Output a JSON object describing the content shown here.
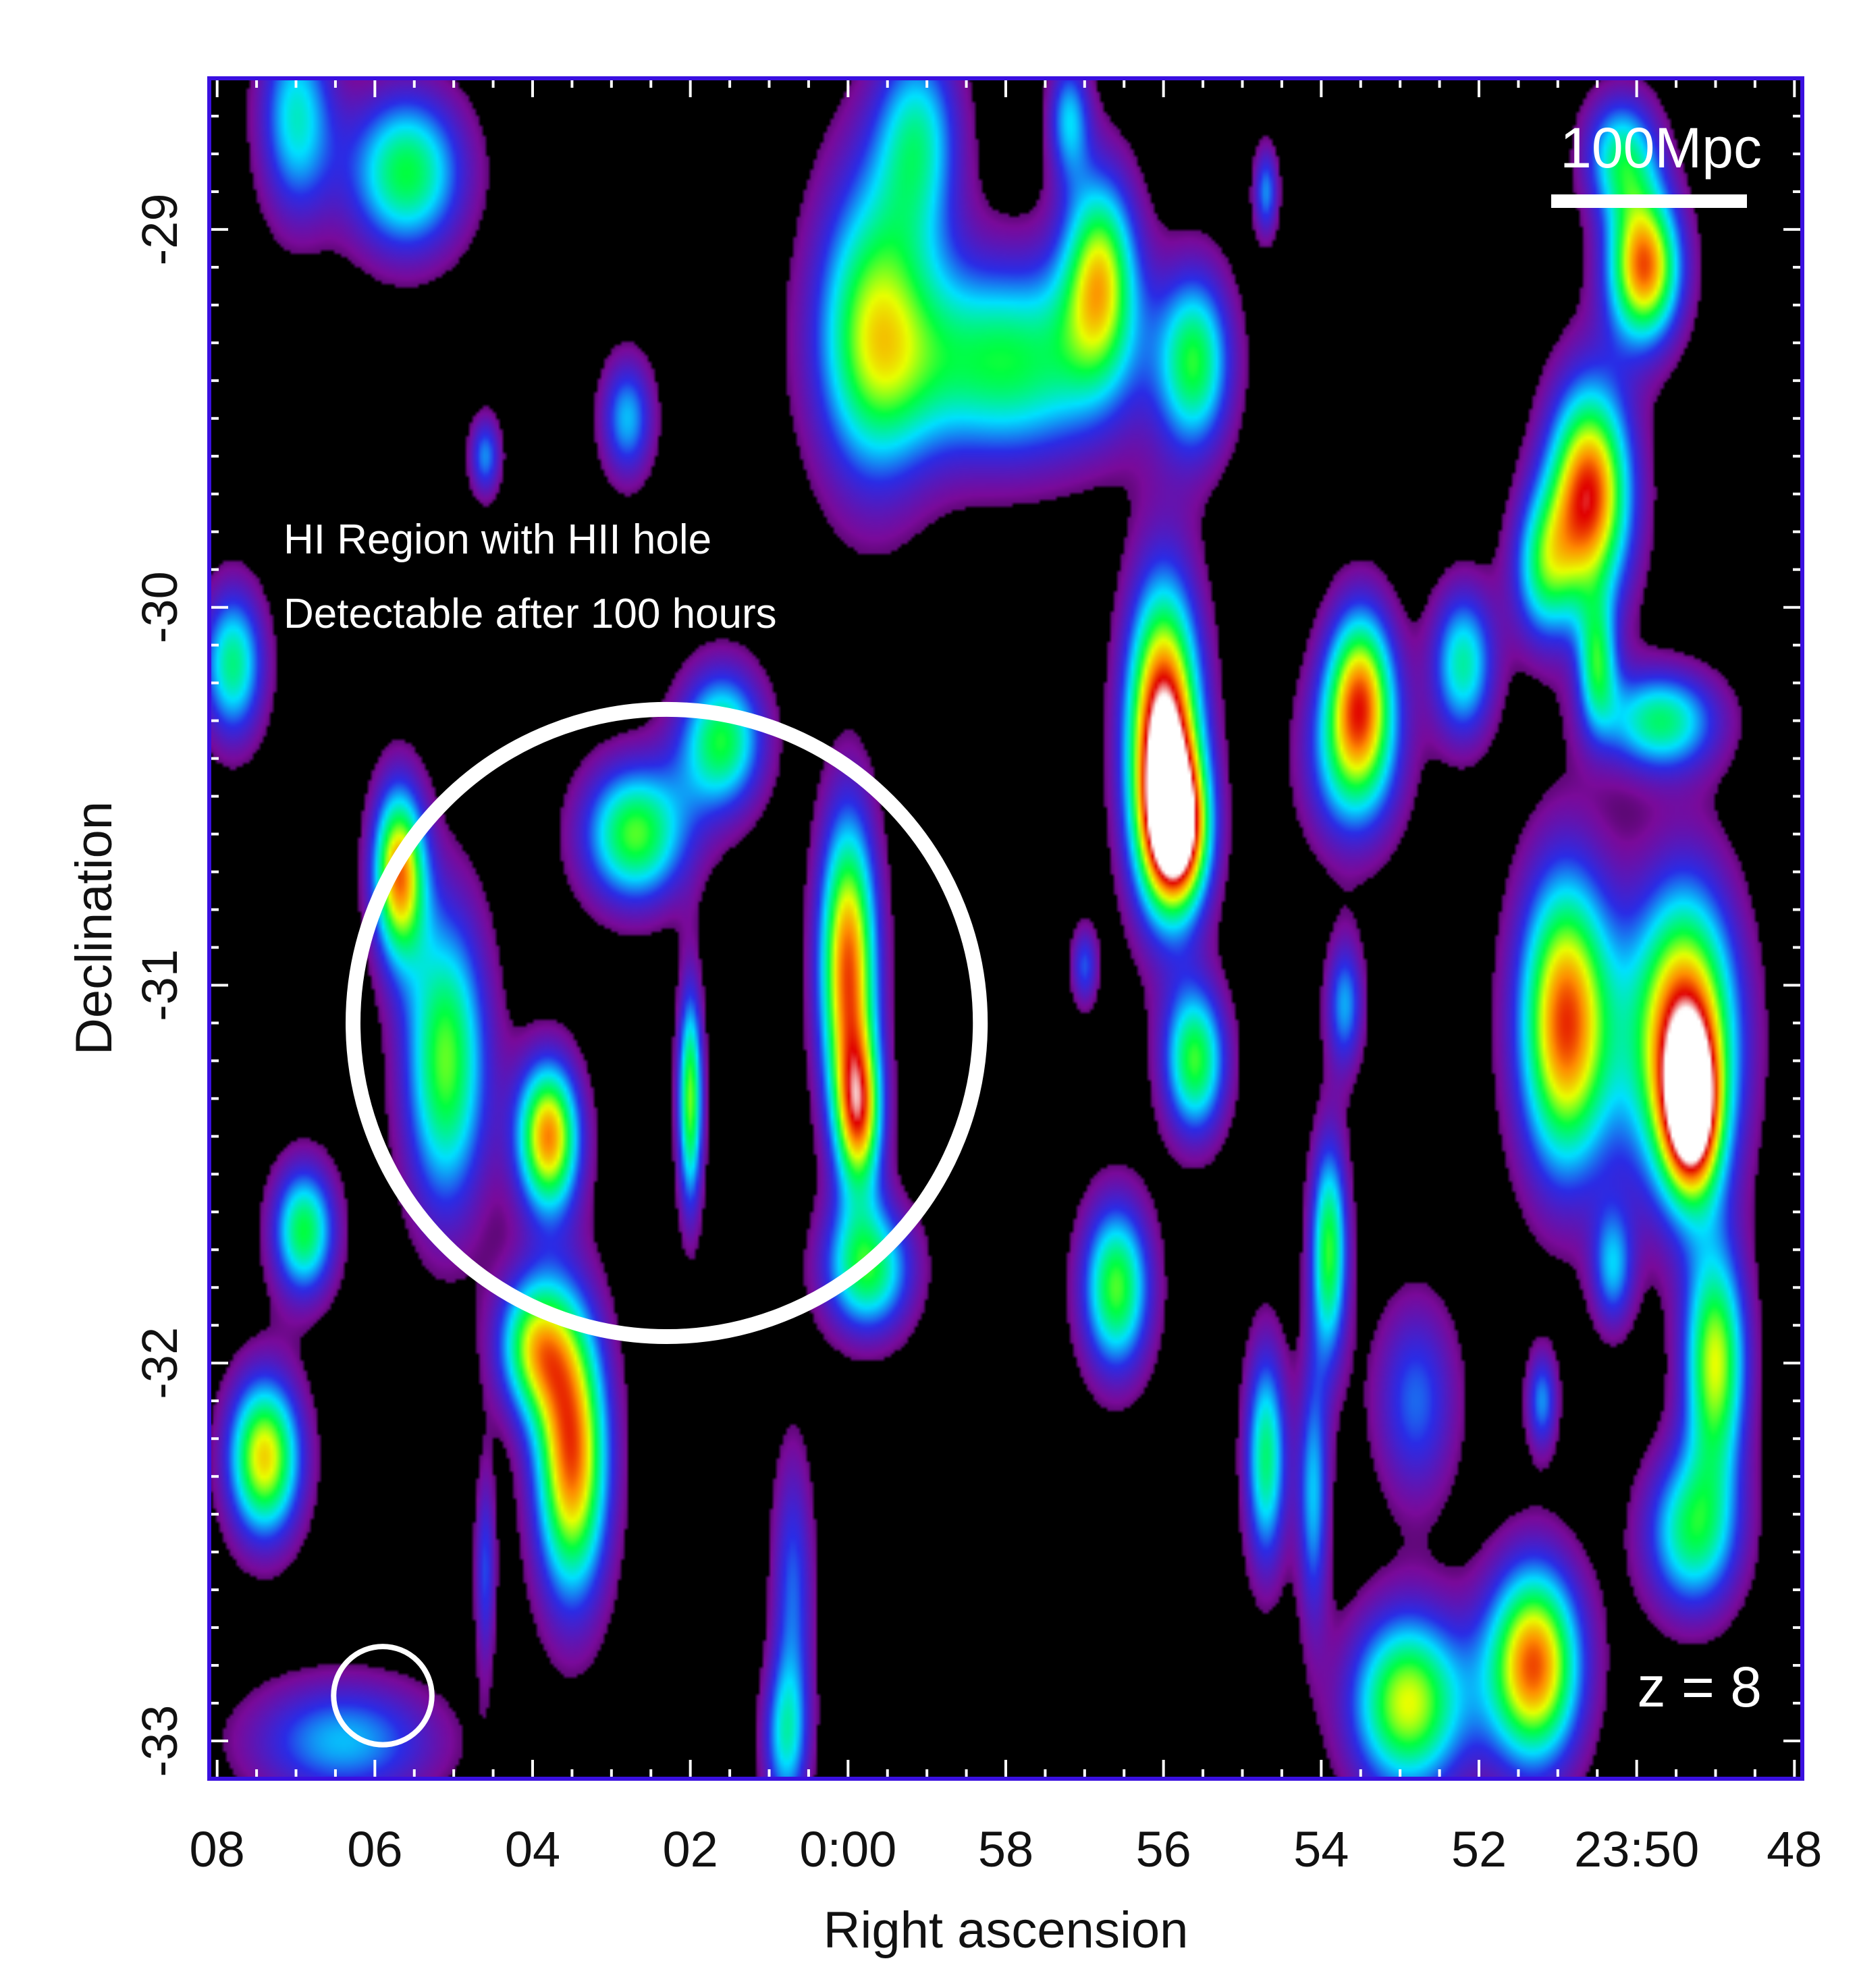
{
  "chart_data": {
    "type": "heatmap",
    "title": "",
    "xlabel": "Right ascension",
    "ylabel": "Declination",
    "x_ticks": [
      {
        "value": 8,
        "label": "08"
      },
      {
        "value": 6,
        "label": "06"
      },
      {
        "value": 4,
        "label": "04"
      },
      {
        "value": 2,
        "label": "02"
      },
      {
        "value": 0,
        "label": "0:00"
      },
      {
        "value": -2,
        "label": "58"
      },
      {
        "value": -4,
        "label": "56"
      },
      {
        "value": -6,
        "label": "54"
      },
      {
        "value": -8,
        "label": "52"
      },
      {
        "value": -10,
        "label": "23:50"
      },
      {
        "value": -12,
        "label": "48"
      }
    ],
    "y_ticks": [
      {
        "value": -29,
        "label": "-29"
      },
      {
        "value": -30,
        "label": "-30"
      },
      {
        "value": -31,
        "label": "-31"
      },
      {
        "value": -32,
        "label": "-32"
      },
      {
        "value": -33,
        "label": "-33"
      }
    ],
    "xlim": [
      8.1,
      -12.1
    ],
    "ylim": [
      -33.1,
      -28.6
    ],
    "colormap": [
      "#000000",
      "#7a0a9a",
      "#2a2ce6",
      "#00e0ff",
      "#00ff40",
      "#e8ff00",
      "#ff8c00",
      "#e00000",
      "#ffffff"
    ],
    "blobs": [
      {
        "x": 7.0,
        "y": -28.7,
        "sx": 0.35,
        "sy": 0.2,
        "amp": 0.48
      },
      {
        "x": 5.6,
        "y": -28.85,
        "sx": 0.55,
        "sy": 0.16,
        "amp": 0.6
      },
      {
        "x": 2.8,
        "y": -29.5,
        "sx": 0.25,
        "sy": 0.12,
        "amp": 0.42
      },
      {
        "x": 4.6,
        "y": -29.6,
        "sx": 0.15,
        "sy": 0.08,
        "amp": 0.38
      },
      {
        "x": -0.3,
        "y": -29.25,
        "sx": 0.55,
        "sy": 0.32,
        "amp": 0.58
      },
      {
        "x": -2.0,
        "y": -29.35,
        "sx": 1.1,
        "sy": 0.2,
        "amp": 0.6
      },
      {
        "x": -3.2,
        "y": -29.1,
        "sx": 0.35,
        "sy": 0.2,
        "amp": 0.62
      },
      {
        "x": -0.9,
        "y": -28.75,
        "sx": 0.4,
        "sy": 0.2,
        "amp": 0.45
      },
      {
        "x": -2.8,
        "y": -28.7,
        "sx": 0.2,
        "sy": 0.12,
        "amp": 0.4
      },
      {
        "x": -4.4,
        "y": -29.35,
        "sx": 0.35,
        "sy": 0.18,
        "amp": 0.56
      },
      {
        "x": -5.3,
        "y": -28.9,
        "sx": 0.12,
        "sy": 0.09,
        "amp": 0.38
      },
      {
        "x": -9.8,
        "y": -28.8,
        "sx": 0.35,
        "sy": 0.12,
        "amp": 0.5
      },
      {
        "x": -10.1,
        "y": -29.1,
        "sx": 0.35,
        "sy": 0.15,
        "amp": 0.85
      },
      {
        "x": -9.4,
        "y": -29.7,
        "sx": 0.4,
        "sy": 0.22,
        "amp": 0.9
      },
      {
        "x": -4.0,
        "y": -30.35,
        "sx": 0.35,
        "sy": 0.3,
        "amp": 1.05
      },
      {
        "x": -4.2,
        "y": -30.6,
        "sx": 0.3,
        "sy": 0.15,
        "amp": 0.7
      },
      {
        "x": -6.5,
        "y": -30.2,
        "sx": 0.32,
        "sy": 0.17,
        "amp": 0.6
      },
      {
        "x": -7.8,
        "y": -30.15,
        "sx": 0.3,
        "sy": 0.15,
        "amp": 0.52
      },
      {
        "x": -6.4,
        "y": -30.4,
        "sx": 0.45,
        "sy": 0.18,
        "amp": 0.48
      },
      {
        "x": -8.8,
        "y": -29.9,
        "sx": 0.3,
        "sy": 0.15,
        "amp": 0.45
      },
      {
        "x": -9.5,
        "y": -30.15,
        "sx": 0.18,
        "sy": 0.12,
        "amp": 0.45
      },
      {
        "x": -10.3,
        "y": -30.3,
        "sx": 0.55,
        "sy": 0.1,
        "amp": 0.55
      },
      {
        "x": 7.8,
        "y": -30.15,
        "sx": 0.3,
        "sy": 0.15,
        "amp": 0.55
      },
      {
        "x": 5.7,
        "y": -30.7,
        "sx": 0.25,
        "sy": 0.17,
        "amp": 0.8
      },
      {
        "x": 5.1,
        "y": -31.2,
        "sx": 0.4,
        "sy": 0.3,
        "amp": 0.65
      },
      {
        "x": 3.8,
        "y": -31.4,
        "sx": 0.3,
        "sy": 0.15,
        "amp": 0.82
      },
      {
        "x": 2.7,
        "y": -30.6,
        "sx": 0.5,
        "sy": 0.14,
        "amp": 0.64
      },
      {
        "x": 1.6,
        "y": -30.35,
        "sx": 0.4,
        "sy": 0.14,
        "amp": 0.6
      },
      {
        "x": 2.0,
        "y": -31.3,
        "sx": 0.12,
        "sy": 0.22,
        "amp": 0.66
      },
      {
        "x": 0.0,
        "y": -30.95,
        "sx": 0.28,
        "sy": 0.3,
        "amp": 0.86
      },
      {
        "x": -0.15,
        "y": -31.35,
        "sx": 0.22,
        "sy": 0.15,
        "amp": 0.62
      },
      {
        "x": 6.9,
        "y": -31.65,
        "sx": 0.3,
        "sy": 0.13,
        "amp": 0.6
      },
      {
        "x": -3.4,
        "y": -31.8,
        "sx": 0.33,
        "sy": 0.17,
        "amp": 0.64
      },
      {
        "x": -0.25,
        "y": -31.75,
        "sx": 0.42,
        "sy": 0.13,
        "amp": 0.6
      },
      {
        "x": -4.4,
        "y": -31.2,
        "sx": 0.3,
        "sy": 0.15,
        "amp": 0.62
      },
      {
        "x": -6.3,
        "y": -31.05,
        "sx": 0.18,
        "sy": 0.13,
        "amp": 0.4
      },
      {
        "x": -3.0,
        "y": -30.95,
        "sx": 0.13,
        "sy": 0.08,
        "amp": 0.33
      },
      {
        "x": -9.1,
        "y": -31.1,
        "sx": 0.45,
        "sy": 0.3,
        "amp": 0.88
      },
      {
        "x": -10.6,
        "y": -31.15,
        "sx": 0.5,
        "sy": 0.3,
        "amp": 0.95
      },
      {
        "x": -10.7,
        "y": -31.35,
        "sx": 0.25,
        "sy": 0.15,
        "amp": 0.6
      },
      {
        "x": -6.1,
        "y": -31.7,
        "sx": 0.18,
        "sy": 0.22,
        "amp": 0.62
      },
      {
        "x": -5.3,
        "y": -32.25,
        "sx": 0.2,
        "sy": 0.22,
        "amp": 0.56
      },
      {
        "x": -5.9,
        "y": -32.35,
        "sx": 0.15,
        "sy": 0.25,
        "amp": 0.42
      },
      {
        "x": -7.2,
        "y": -32.1,
        "sx": 0.4,
        "sy": 0.2,
        "amp": 0.35
      },
      {
        "x": -9.7,
        "y": -31.75,
        "sx": 0.2,
        "sy": 0.12,
        "amp": 0.38
      },
      {
        "x": -11.0,
        "y": -32.0,
        "sx": 0.3,
        "sy": 0.22,
        "amp": 0.7
      },
      {
        "x": -10.7,
        "y": -32.45,
        "sx": 0.45,
        "sy": 0.16,
        "amp": 0.55
      },
      {
        "x": -8.8,
        "y": -32.1,
        "sx": 0.15,
        "sy": 0.1,
        "amp": 0.38
      },
      {
        "x": 3.5,
        "y": -32.25,
        "sx": 0.35,
        "sy": 0.28,
        "amp": 0.86
      },
      {
        "x": 4.0,
        "y": -31.95,
        "sx": 0.35,
        "sy": 0.14,
        "amp": 0.6
      },
      {
        "x": 7.4,
        "y": -32.25,
        "sx": 0.35,
        "sy": 0.16,
        "amp": 0.76
      },
      {
        "x": 0.7,
        "y": -32.6,
        "sx": 0.2,
        "sy": 0.28,
        "amp": 0.34
      },
      {
        "x": 0.8,
        "y": -33.0,
        "sx": 0.22,
        "sy": 0.15,
        "amp": 0.4
      },
      {
        "x": -7.1,
        "y": -32.9,
        "sx": 0.55,
        "sy": 0.18,
        "amp": 0.72
      },
      {
        "x": -8.7,
        "y": -32.8,
        "sx": 0.45,
        "sy": 0.2,
        "amp": 0.86
      },
      {
        "x": 6.4,
        "y": -33.0,
        "sx": 0.9,
        "sy": 0.12,
        "amp": 0.42
      },
      {
        "x": 4.6,
        "y": -32.55,
        "sx": 0.1,
        "sy": 0.2,
        "amp": 0.32
      }
    ],
    "annotations": {
      "region_label_line1": "HI Region with HII hole",
      "region_label_line2": "Detectable after 100 hours",
      "region_circle": {
        "x": 2.3,
        "y": -31.1,
        "r_dec": 0.83
      },
      "beam_circle": {
        "x": 5.9,
        "y": -32.88,
        "r_dec": 0.13
      },
      "scale_bar_label": "100Mpc",
      "redshift_label": "z = 8"
    }
  }
}
